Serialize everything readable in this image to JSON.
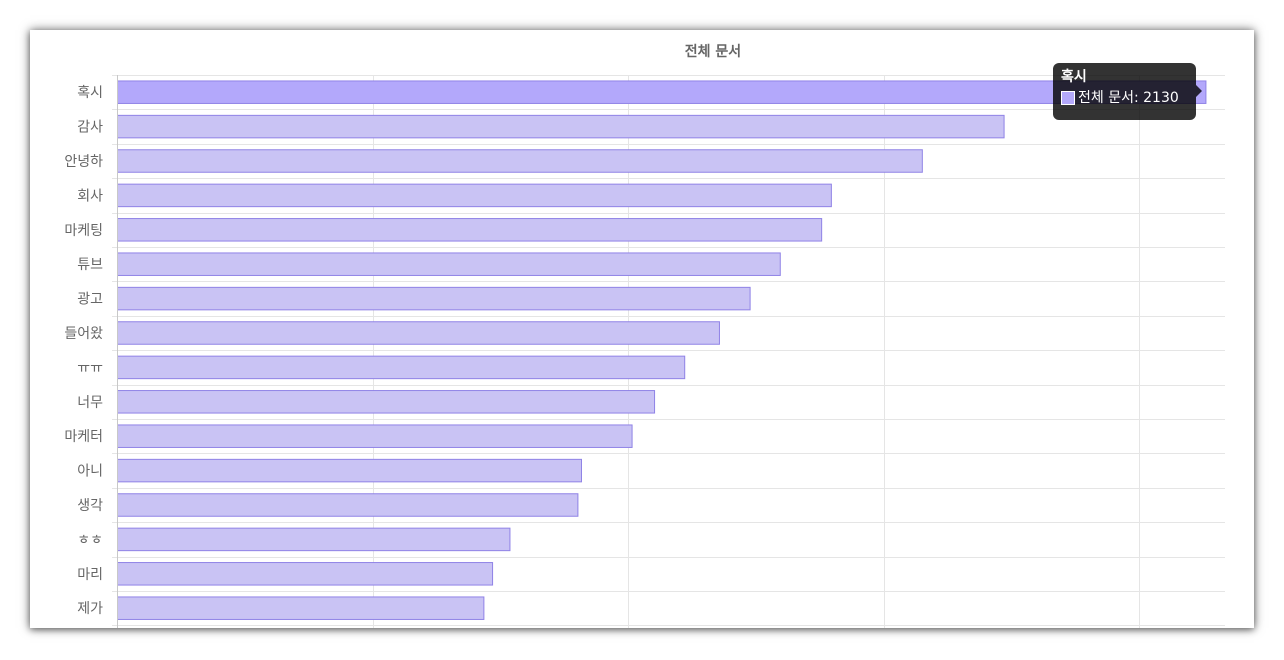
{
  "chart_data": {
    "type": "bar",
    "orientation": "horizontal",
    "title": "전체 문서",
    "categories": [
      "혹시",
      "감사",
      "안녕하",
      "회사",
      "마케팅",
      "튜브",
      "광고",
      "들어왔",
      "ㅠㅠ",
      "너무",
      "마케터",
      "아니",
      "생각",
      "ㅎㅎ",
      "마리",
      "제가"
    ],
    "series": [
      {
        "name": "전체 문서",
        "values": [
          2130,
          1735,
          1575,
          1397,
          1378,
          1297,
          1238,
          1178,
          1110,
          1051,
          1007,
          908,
          901,
          768,
          734,
          717
        ]
      }
    ],
    "xlim": [
      0,
      2200
    ],
    "x_tick_step": 500,
    "grid": true,
    "legend": "none",
    "colors": {
      "bar_fill": "#c9c3f4",
      "bar_fill_active": "#b3a8fb",
      "bar_border": "#8f82e6",
      "grid": "#e5e5e5",
      "axis": "#c8c8c8"
    }
  },
  "tooltip": {
    "title": "혹시",
    "label": "전체 문서: 2130"
  }
}
